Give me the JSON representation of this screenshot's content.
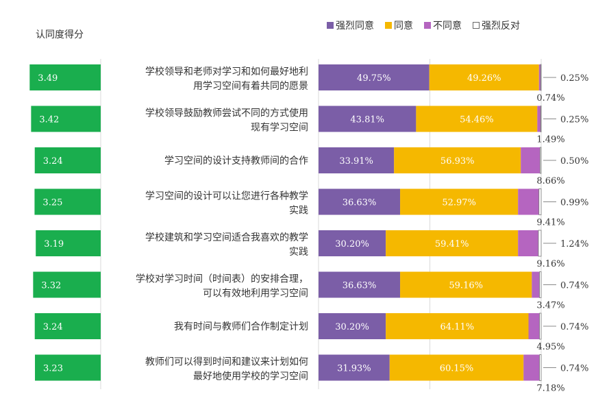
{
  "chart_data": {
    "type": "bar",
    "stacked": true,
    "percent": true,
    "score_title": "认同度得分",
    "score_max": 3.5,
    "categories": [
      "学校领导和老师对学习和如何最好地利用学习空间有着共同的愿景",
      "学校领导鼓励教师尝试不同的方式使用现有学习空间",
      "学习空间的设计支持教师间的合作",
      "学习空间的设计可以让您进行各种教学实践",
      "学校建筑和学习空间适合我喜欢的教学实践",
      "学校对学习时间（时间表）的安排合理，可以有效地利用学习空间",
      "我有时间与教师们合作制定计划",
      "教师们可以得到时间和建议来计划如何最好地使用学校的学习空间"
    ],
    "category_lines": [
      [
        "学校领导和老师对学习和如何最好地利",
        "用学习空间有着共同的愿景"
      ],
      [
        "学校领导鼓励教师尝试不同的方式使用",
        "现有学习空间"
      ],
      [
        "学习空间的设计支持教师间的合作"
      ],
      [
        "学习空间的设计可以让您进行各种教学",
        "实践"
      ],
      [
        "学校建筑和学习空间适合我喜欢的教学",
        "实践"
      ],
      [
        "学校对学习时间（时间表）的安排合理，",
        "可以有效地利用学习空间"
      ],
      [
        "我有时间与教师们合作制定计划"
      ],
      [
        "教师们可以得到时间和建议来计划如何",
        "最好地使用学校的学习空间"
      ]
    ],
    "scores": [
      3.49,
      3.42,
      3.24,
      3.25,
      3.19,
      3.32,
      3.24,
      3.23
    ],
    "score_labels": [
      "3.49",
      "3.42",
      "3.24",
      "3.25",
      "3.19",
      "3.32",
      "3.24",
      "3.23"
    ],
    "series": [
      {
        "name": "强烈同意",
        "color": "#7b5ea7",
        "values": [
          49.75,
          43.81,
          33.91,
          36.63,
          30.2,
          36.63,
          30.2,
          31.93
        ],
        "labels": [
          "49.75%",
          "43.81%",
          "33.91%",
          "36.63%",
          "30.20%",
          "36.63%",
          "30.20%",
          "31.93%"
        ]
      },
      {
        "name": "同意",
        "color": "#f5b800",
        "values": [
          49.26,
          54.46,
          56.93,
          52.97,
          59.41,
          59.16,
          64.11,
          60.15
        ],
        "labels": [
          "49.26%",
          "54.46%",
          "56.93%",
          "52.97%",
          "59.41%",
          "59.16%",
          "64.11%",
          "60.15%"
        ]
      },
      {
        "name": "不同意",
        "color": "#b565c0",
        "values": [
          0.74,
          1.49,
          8.66,
          9.41,
          9.16,
          3.47,
          4.95,
          7.18
        ],
        "labels": [
          "0.74%",
          "1.49%",
          "8.66%",
          "9.41%",
          "9.16%",
          "3.47%",
          "4.95%",
          "7.18%"
        ]
      },
      {
        "name": "强烈反对",
        "color": "#ffffff",
        "values": [
          0.25,
          0.25,
          0.5,
          0.99,
          1.24,
          0.74,
          0.74,
          0.74
        ],
        "labels": [
          "0.25%",
          "0.25%",
          "0.50%",
          "0.99%",
          "1.24%",
          "0.74%",
          "0.74%",
          "0.74%"
        ]
      }
    ],
    "score_bar_color": "#1aae4e",
    "grid": true,
    "legend_position": "top-right"
  }
}
